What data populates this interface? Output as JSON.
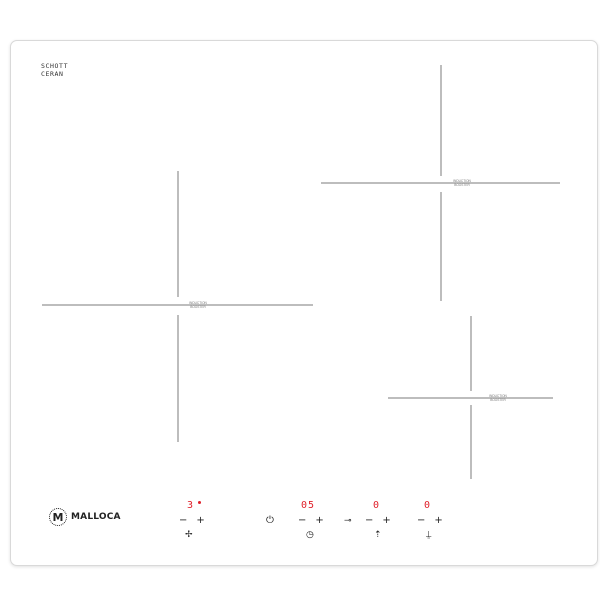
{
  "brand": {
    "schott_ceran": "SCHOTT\nCERAN",
    "logo_letter": "M",
    "logo_text": "MALLOCA"
  },
  "zones": [
    {
      "label": "INDUCTION\nBOOSTER"
    },
    {
      "label": "INDUCTION\nBOOSTER"
    },
    {
      "label": "INDUCTION\nBOOSTER"
    }
  ],
  "controls": {
    "zone_display": "3",
    "timer_display": "05",
    "lock_display": "0",
    "display_4": "0",
    "minus": "−",
    "plus": "+",
    "power_icon": "power-icon",
    "lock_icon": "key-lock-icon",
    "status_colors": {
      "display": "#e0202a",
      "text": "#222222"
    }
  }
}
